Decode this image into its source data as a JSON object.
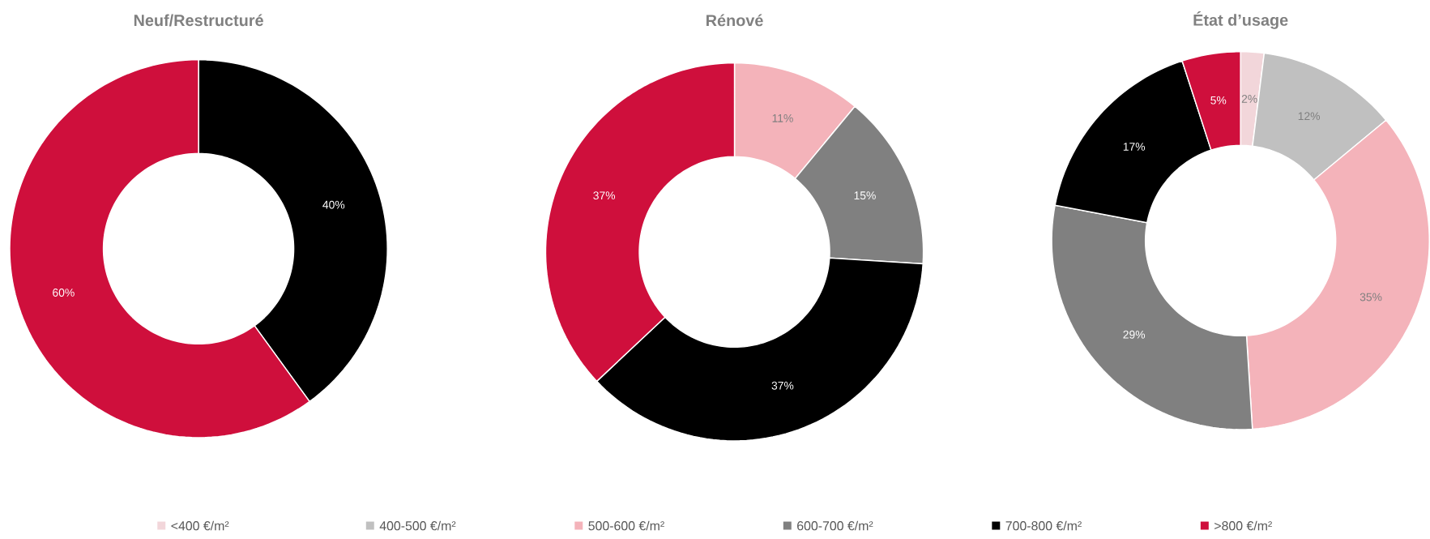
{
  "chart_data": [
    {
      "type": "donut",
      "title": "Neuf/Restructuré",
      "categories": [
        null,
        null
      ],
      "values": [
        40,
        60
      ],
      "colors": [
        "#000000",
        "#cf0f3c"
      ],
      "value_labels": [
        "40%",
        "60%"
      ]
    },
    {
      "type": "donut",
      "title": "Rénové",
      "categories": [
        null,
        null,
        null,
        null
      ],
      "values": [
        11,
        15,
        37,
        37
      ],
      "colors": [
        "#f4b3ba",
        "#808080",
        "#000000",
        "#cf0f3c"
      ],
      "value_labels": [
        "11%",
        "15%",
        "37%",
        "37%"
      ]
    },
    {
      "type": "donut",
      "title": "État d’usage",
      "categories": [
        "<400 €/m²",
        "400-500 €/m²",
        "500-600 €/m²",
        "600-700 €/m²",
        "700-800 €/m²",
        ">800 €/m²"
      ],
      "values": [
        2,
        12,
        35,
        29,
        17,
        5
      ],
      "colors": [
        "#f2d6da",
        "#c0c0c0",
        "#f4b3ba",
        "#808080",
        "#000000",
        "#cf0f3c"
      ],
      "value_labels": [
        "2%",
        "12%",
        "35%",
        "29%",
        "17%",
        "5%"
      ],
      "legend": "bottom"
    }
  ]
}
